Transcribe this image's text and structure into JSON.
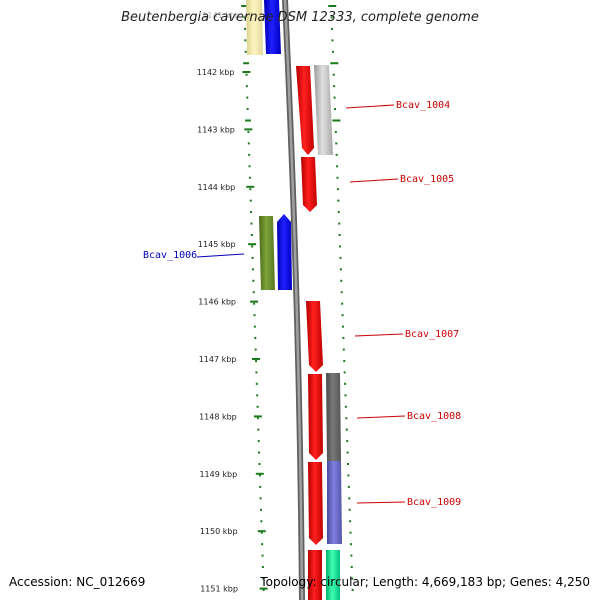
{
  "title": "Beutenbergia cavernae DSM 12333, complete genome",
  "footer": {
    "accession": "Accession: NC_012669",
    "summary": "Topology: circular; Length: 4,669,183 bp; Genes: 4,250"
  },
  "colors": {
    "forward_label": "#cc0000",
    "reverse_label": "#0000bb",
    "tick": "#1a7a1a",
    "backbone": "#808080"
  },
  "kbp_ticks": [
    "1142 kbp",
    "1143 kbp",
    "1144 kbp",
    "1145 kbp",
    "1146 kbp",
    "1147 kbp",
    "1148 kbp",
    "1149 kbp",
    "1150 kbp",
    "1151 kbp"
  ],
  "top_partial_tick": "1141 kbp",
  "gene_labels": [
    {
      "text": "Bcav_1004",
      "strand": "forward"
    },
    {
      "text": "Bcav_1005",
      "strand": "forward"
    },
    {
      "text": "Bcav_1006",
      "strand": "reverse"
    },
    {
      "text": "Bcav_1007",
      "strand": "forward"
    },
    {
      "text": "Bcav_1008",
      "strand": "forward"
    },
    {
      "text": "Bcav_1009",
      "strand": "forward"
    }
  ]
}
